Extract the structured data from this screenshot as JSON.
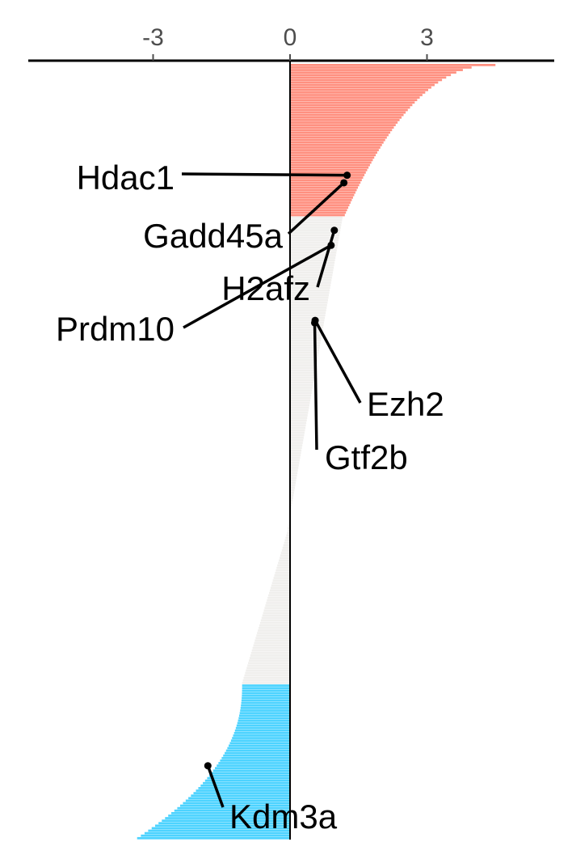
{
  "chart_data": {
    "type": "bar",
    "orientation": "horizontal",
    "sorted": "descending",
    "xlim": [
      -5.3,
      6.1
    ],
    "xticks": [
      {
        "value": -3,
        "label": "-3"
      },
      {
        "value": 0,
        "label": "0"
      },
      {
        "value": 3,
        "label": "3"
      }
    ],
    "axis_position": "top",
    "grid": false,
    "legend": "none",
    "colors": {
      "up": "#FF9080",
      "neutral": "#F0EFED",
      "down": "#4DD3FF",
      "axis": "#000000",
      "tick_text": "#4d4d4d"
    },
    "groups": [
      {
        "name": "up",
        "count": 61,
        "range": [
          4.5,
          1.2
        ]
      },
      {
        "name": "neutral",
        "count": 125,
        "range": [
          1.15,
          -0.05
        ]
      },
      {
        "name": "neutral_negative",
        "count": 62,
        "range": [
          -0.05,
          -1.05
        ]
      },
      {
        "name": "down",
        "count": 62,
        "range": [
          -1.05,
          -3.35
        ]
      }
    ],
    "total_bars": 310,
    "highlighted_genes": [
      {
        "label": "Hdac1",
        "rank": 45,
        "value": 1.25
      },
      {
        "label": "Gadd45a",
        "rank": 48,
        "value": 1.18
      },
      {
        "label": "H2afz",
        "rank": 67,
        "value": 0.97
      },
      {
        "label": "Prdm10",
        "rank": 73,
        "value": 0.9
      },
      {
        "label": "Ezh2",
        "rank": 103,
        "value": 0.55
      },
      {
        "label": "Gtf2b",
        "rank": 104,
        "value": 0.54
      },
      {
        "label": "Kdm3a",
        "rank": 281,
        "value": -1.8
      }
    ]
  }
}
